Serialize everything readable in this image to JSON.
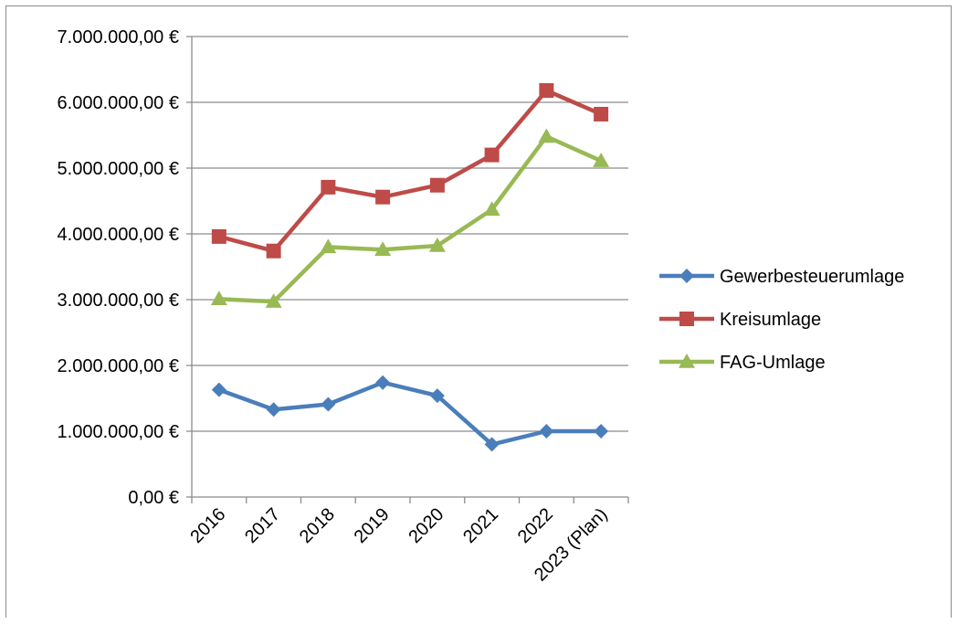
{
  "chart_data": {
    "type": "line",
    "title": "",
    "xlabel": "",
    "ylabel": "",
    "categories": [
      "2016",
      "2017",
      "2018",
      "2019",
      "2020",
      "2021",
      "2022",
      "2023 (Plan)"
    ],
    "ylim": [
      0,
      7000000
    ],
    "yticks": [
      0,
      1000000,
      2000000,
      3000000,
      4000000,
      5000000,
      6000000,
      7000000
    ],
    "ytick_labels": [
      "0,00 €",
      "1.000.000,00 €",
      "2.000.000,00 €",
      "3.000.000,00 €",
      "4.000.000,00 €",
      "5.000.000,00 €",
      "6.000.000,00 €",
      "7.000.000,00 €"
    ],
    "grid": true,
    "legend_position": "right",
    "series": [
      {
        "name": "Gewerbesteuerumlage",
        "color": "#4a7ebb",
        "marker": "diamond",
        "values": [
          1630000,
          1330000,
          1410000,
          1740000,
          1540000,
          800000,
          1000000,
          1000000
        ]
      },
      {
        "name": "Kreisumlage",
        "color": "#be4b48",
        "marker": "square",
        "values": [
          3960000,
          3740000,
          4710000,
          4560000,
          4740000,
          5200000,
          6180000,
          5820000
        ]
      },
      {
        "name": "FAG-Umlage",
        "color": "#98b954",
        "marker": "triangle",
        "values": [
          3010000,
          2970000,
          3800000,
          3760000,
          3820000,
          4370000,
          5480000,
          5110000
        ]
      }
    ]
  }
}
